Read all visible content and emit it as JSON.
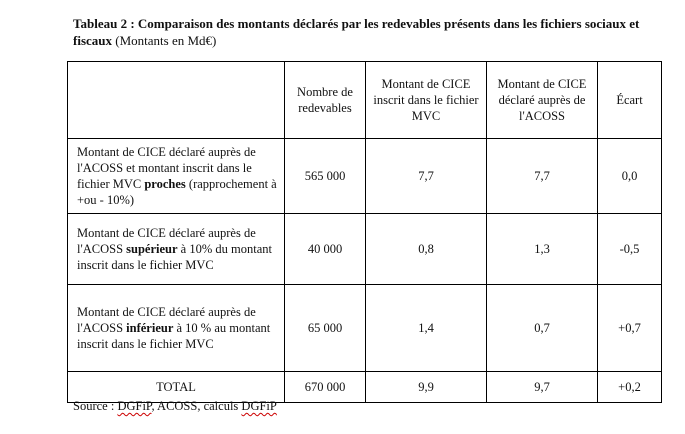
{
  "caption": {
    "bold": "Tableau 2 : Comparaison des montants déclarés par les redevables présents dans les fichiers sociaux et fiscaux",
    "normal": " (Montants en Md€)"
  },
  "headers": [
    "",
    "Nombre de redevables",
    "Montant de CICE inscrit dans le fichier MVC",
    "Montant de CICE déclaré auprès de l'ACOSS",
    "Écart"
  ],
  "rows": [
    {
      "label_pre": "Montant de CICE déclaré auprès de l'ACOSS et montant inscrit dans le fichier MVC ",
      "label_bold": "proches",
      "label_post": " (rapprochement à +ou - 10%)",
      "redevables": "565 000",
      "mvc": "7,7",
      "acoss": "7,7",
      "ecart": "0,0"
    },
    {
      "label_pre": "Montant de CICE déclaré auprès de l'ACOSS ",
      "label_bold": "supérieur",
      "label_post": " à 10% du montant inscrit dans le fichier MVC",
      "redevables": "40 000",
      "mvc": "0,8",
      "acoss": "1,3",
      "ecart": "-0,5"
    },
    {
      "label_pre": "Montant de CICE déclaré auprès de l'ACOSS ",
      "label_bold": "inférieur",
      "label_post": " à 10 % au montant inscrit dans le fichier MVC",
      "redevables": "65 000",
      "mvc": "1,4",
      "acoss": "0,7",
      "ecart": "+0,7"
    }
  ],
  "total": {
    "label": "TOTAL",
    "redevables": "670 000",
    "mvc": "9,9",
    "acoss": "9,7",
    "ecart": "+0,2"
  },
  "source": {
    "prefix": "Source : ",
    "dgfip1": "DGFiP",
    "middle": ", ACOSS, calculs ",
    "dgfip2": "DGFiP"
  }
}
